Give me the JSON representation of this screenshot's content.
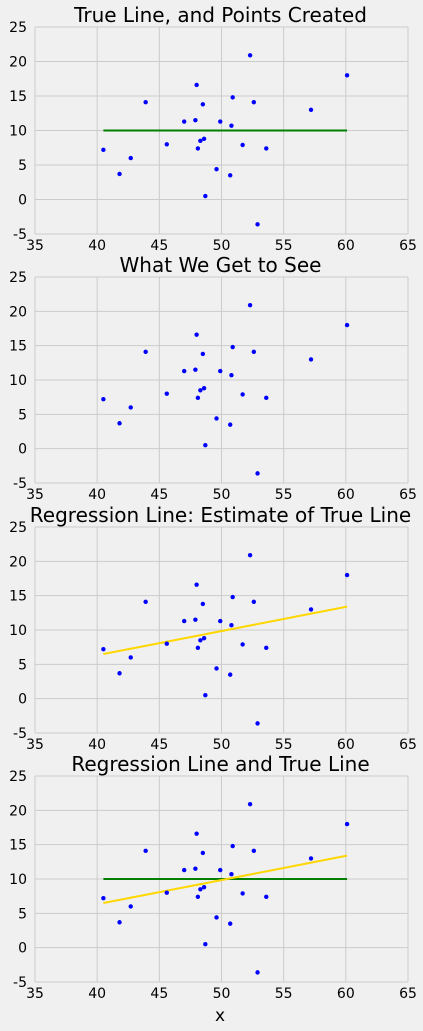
{
  "colors": {
    "background": "#f0f0f0",
    "grid": "#cbcbcb",
    "points": "#0000ff",
    "true_line": "#008000",
    "regression_line": "#ffd700"
  },
  "xlabel": "x",
  "points": {
    "x": [
      40.5,
      41.8,
      42.7,
      43.9,
      45.6,
      47.0,
      47.9,
      48.0,
      48.1,
      48.3,
      48.5,
      48.6,
      48.7,
      49.6,
      49.9,
      50.7,
      50.8,
      50.9,
      51.7,
      52.3,
      52.6,
      52.9,
      53.6,
      57.2,
      60.1
    ],
    "y": [
      7.2,
      3.7,
      6.0,
      14.1,
      8.0,
      11.3,
      11.5,
      16.6,
      7.4,
      8.5,
      13.8,
      8.8,
      0.5,
      4.4,
      11.3,
      3.5,
      10.7,
      14.8,
      7.9,
      20.9,
      14.1,
      -3.6,
      7.4,
      13.0,
      18.0
    ]
  },
  "chart_data": [
    {
      "type": "scatter",
      "title": "True Line, and Points Created",
      "xlabel": "",
      "ylabel": "",
      "xlim": [
        35,
        65
      ],
      "ylim": [
        -5,
        25
      ],
      "xticks": [
        35,
        40,
        45,
        50,
        55,
        60,
        65
      ],
      "yticks": [
        -5,
        0,
        5,
        10,
        15,
        20,
        25
      ],
      "grid": true,
      "lines": [
        {
          "color": "green",
          "x": [
            40.5,
            60.1
          ],
          "y": [
            10,
            10
          ]
        }
      ]
    },
    {
      "type": "scatter",
      "title": "What We Get to See",
      "xlabel": "",
      "ylabel": "",
      "xlim": [
        35,
        65
      ],
      "ylim": [
        -5,
        25
      ],
      "xticks": [
        35,
        40,
        45,
        50,
        55,
        60,
        65
      ],
      "yticks": [
        -5,
        0,
        5,
        10,
        15,
        20,
        25
      ],
      "grid": true,
      "lines": []
    },
    {
      "type": "scatter",
      "title": "Regression Line: Estimate of True Line",
      "xlabel": "",
      "ylabel": "",
      "xlim": [
        35,
        65
      ],
      "ylim": [
        -5,
        25
      ],
      "xticks": [
        35,
        40,
        45,
        50,
        55,
        60,
        65
      ],
      "yticks": [
        -5,
        0,
        5,
        10,
        15,
        20,
        25
      ],
      "grid": true,
      "lines": [
        {
          "color": "gold",
          "x": [
            40.5,
            60.1
          ],
          "y": [
            6.5,
            13.4
          ]
        }
      ]
    },
    {
      "type": "scatter",
      "title": "Regression Line and True Line",
      "xlabel": "x",
      "ylabel": "",
      "xlim": [
        35,
        65
      ],
      "ylim": [
        -5,
        25
      ],
      "xticks": [
        35,
        40,
        45,
        50,
        55,
        60,
        65
      ],
      "yticks": [
        -5,
        0,
        5,
        10,
        15,
        20,
        25
      ],
      "grid": true,
      "lines": [
        {
          "color": "green",
          "x": [
            40.5,
            60.1
          ],
          "y": [
            10,
            10
          ]
        },
        {
          "color": "gold",
          "x": [
            40.5,
            60.1
          ],
          "y": [
            6.5,
            13.4
          ]
        }
      ]
    }
  ]
}
